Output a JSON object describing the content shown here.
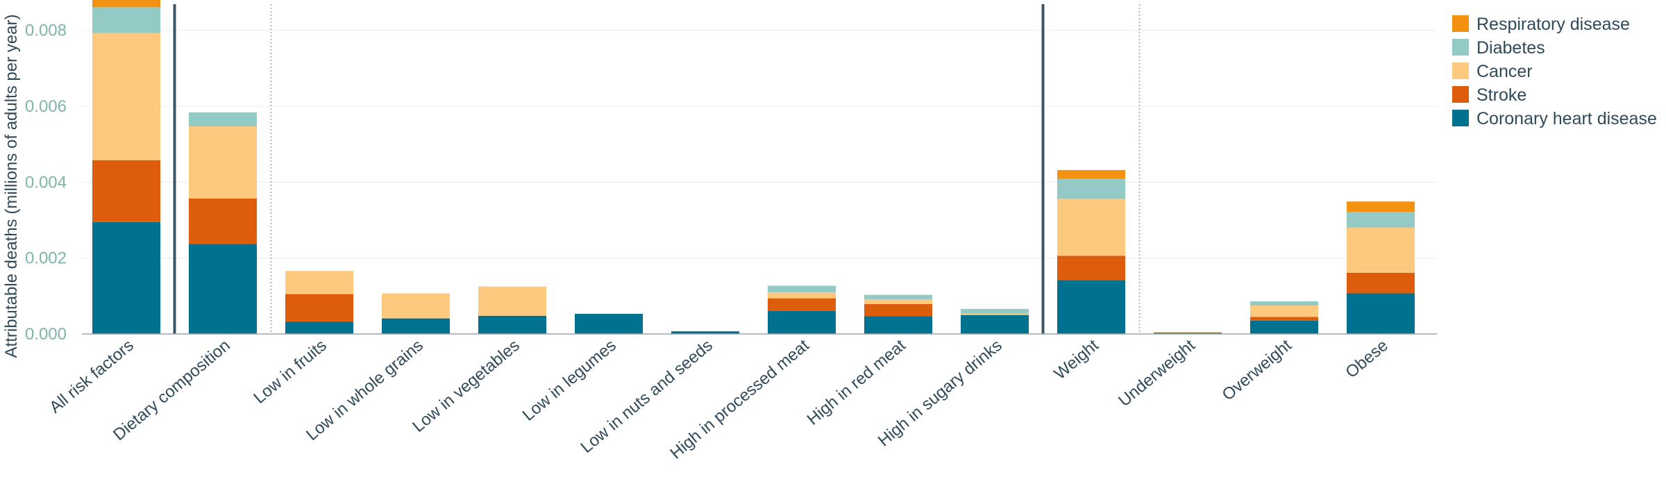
{
  "chart_data": {
    "type": "bar",
    "stacked": true,
    "ylabel": "Attributable deaths (millions of adults per year)",
    "ylim": [
      0,
      0.0088
    ],
    "yticks": [
      "0.000",
      "0.002",
      "0.004",
      "0.006",
      "0.008"
    ],
    "ytick_values": [
      0,
      0.002,
      0.004,
      0.006,
      0.008
    ],
    "grid": true,
    "legend_position": "top-right",
    "categories": [
      "All risk factors",
      "Dietary composition",
      "Low in fruits",
      "Low in whole grains",
      "Low in vegetables",
      "Low in legumes",
      "Low in nuts and seeds",
      "High in processed meat",
      "High in red meat",
      "High in sugary drinks",
      "Weight",
      "Underweight",
      "Overweight",
      "Obese"
    ],
    "series": [
      {
        "name": "Coronary heart disease",
        "color": "#00718f",
        "values": [
          0.00295,
          0.00237,
          0.00032,
          0.00041,
          0.00048,
          0.00053,
          7e-05,
          0.00061,
          0.00047,
          0.0005,
          0.00142,
          3e-05,
          0.00035,
          0.00107
        ]
      },
      {
        "name": "Stroke",
        "color": "#de5d0c",
        "values": [
          0.00163,
          0.0012,
          0.00073,
          0.0,
          0.0,
          0.0,
          0.0,
          0.00033,
          0.00032,
          0.0,
          0.00064,
          1e-05,
          0.0001,
          0.00054
        ]
      },
      {
        "name": "Cancer",
        "color": "#fdc97e",
        "values": [
          0.00335,
          0.0019,
          0.00061,
          0.00066,
          0.00077,
          0.0,
          0.0,
          0.00016,
          0.00012,
          4e-05,
          0.0015,
          1e-05,
          0.0003,
          0.00119
        ]
      },
      {
        "name": "Diabetes",
        "color": "#93cac6",
        "values": [
          0.00068,
          0.00037,
          0.0,
          0.0,
          0.0,
          0.0,
          0.0,
          0.00017,
          0.00012,
          0.00012,
          0.00053,
          0.0,
          0.00011,
          0.00042
        ]
      },
      {
        "name": "Respiratory disease",
        "color": "#f39110",
        "values": [
          0.00022,
          0.0,
          0.0,
          0.0,
          0.0,
          0.0,
          0.0,
          0.0,
          0.0,
          0.0,
          0.00023,
          0.0,
          0.0,
          0.00027
        ]
      }
    ],
    "legend_order": [
      "Respiratory disease",
      "Diabetes",
      "Cancer",
      "Stroke",
      "Coronary heart disease"
    ]
  }
}
